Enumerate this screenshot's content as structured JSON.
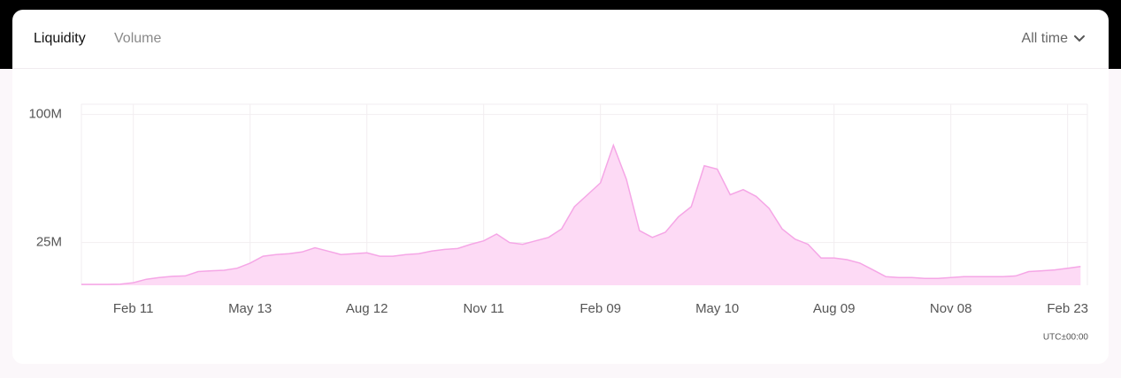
{
  "tabs": [
    "Liquidity",
    "Volume"
  ],
  "range_selector": "All time",
  "chart_data": {
    "type": "area",
    "categories": [
      null,
      null,
      null,
      null,
      "Feb 11",
      null,
      null,
      null,
      null,
      null,
      null,
      null,
      null,
      "May 13",
      null,
      null,
      null,
      null,
      null,
      null,
      null,
      null,
      "Aug 12",
      null,
      null,
      null,
      null,
      null,
      null,
      null,
      null,
      "Nov 11",
      null,
      null,
      null,
      null,
      null,
      null,
      null,
      null,
      "Feb 09",
      null,
      null,
      null,
      null,
      null,
      null,
      null,
      null,
      "May 10",
      null,
      null,
      null,
      null,
      null,
      null,
      null,
      null,
      "Aug 09",
      null,
      null,
      null,
      null,
      null,
      null,
      null,
      null,
      "Nov 08",
      null,
      null,
      null,
      null,
      null,
      null,
      null,
      null,
      "Feb 23",
      null
    ],
    "values": [
      0.5,
      0.5,
      0.5,
      0.6,
      1.5,
      3.5,
      4.5,
      5.2,
      5.5,
      8,
      8.5,
      8.8,
      10,
      13,
      17,
      18,
      18.5,
      19.5,
      22,
      20,
      18,
      18.5,
      19,
      17,
      17,
      18,
      18.5,
      20,
      21,
      21.5,
      24,
      26,
      30,
      25,
      24,
      26,
      28,
      33,
      46,
      53,
      60,
      82,
      62,
      32,
      28,
      31,
      40,
      46,
      70,
      68,
      53,
      56,
      52,
      45,
      33,
      27,
      24,
      16,
      16,
      15,
      13,
      9,
      5,
      4.5,
      4.5,
      4,
      4,
      4.5,
      5,
      5,
      5,
      5,
      5.5,
      8,
      8.5,
      9,
      10,
      11
    ],
    "color": "#f5a6e6",
    "fill": "#fddaf5",
    "ylim": [
      0,
      106
    ],
    "yticks": [
      {
        "value": 25,
        "label": "25M"
      },
      {
        "value": 100,
        "label": "100M"
      }
    ],
    "grid": true,
    "timezone_note": "UTC±00:00"
  }
}
